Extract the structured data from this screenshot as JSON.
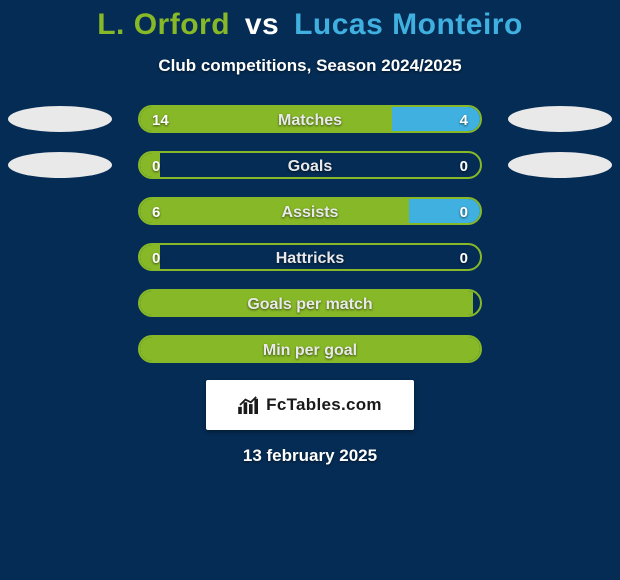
{
  "background_color": "#052c54",
  "title": {
    "player1": "L. Orford",
    "vs": "vs",
    "player2": "Lucas Monteiro",
    "player1_color": "#86b827",
    "player2_color": "#3fb0e0"
  },
  "subtitle": "Club competitions, Season 2024/2025",
  "bar_shell_border_color": "#86b827",
  "bar_label_color": "#e9e9e9",
  "ellipse_color": "#e9e9e9",
  "value_text_color": "#ffffff",
  "fill_color_left": "#86b827",
  "fill_color_right": "#3fb0e0",
  "rows": [
    {
      "label": "Matches",
      "left_val": "14",
      "right_val": "4",
      "left_pct": 74,
      "right_pct": 26,
      "show_left_ellipse": true,
      "show_right_ellipse": true,
      "show_values": true
    },
    {
      "label": "Goals",
      "left_val": "0",
      "right_val": "0",
      "left_pct": 6,
      "right_pct": 0,
      "show_left_ellipse": true,
      "show_right_ellipse": true,
      "show_values": true
    },
    {
      "label": "Assists",
      "left_val": "6",
      "right_val": "0",
      "left_pct": 79,
      "right_pct": 21,
      "show_left_ellipse": false,
      "show_right_ellipse": false,
      "show_values": true
    },
    {
      "label": "Hattricks",
      "left_val": "0",
      "right_val": "0",
      "left_pct": 6,
      "right_pct": 0,
      "show_left_ellipse": false,
      "show_right_ellipse": false,
      "show_values": true
    },
    {
      "label": "Goals per match",
      "left_val": "",
      "right_val": "",
      "left_pct": 98,
      "right_pct": 0,
      "show_left_ellipse": false,
      "show_right_ellipse": false,
      "show_values": false
    },
    {
      "label": "Min per goal",
      "left_val": "",
      "right_val": "",
      "left_pct": 100,
      "right_pct": 0,
      "show_left_ellipse": false,
      "show_right_ellipse": false,
      "show_values": false
    }
  ],
  "badge": {
    "text": "FcTables.com",
    "hot": ".com"
  },
  "date": "13 february 2025"
}
